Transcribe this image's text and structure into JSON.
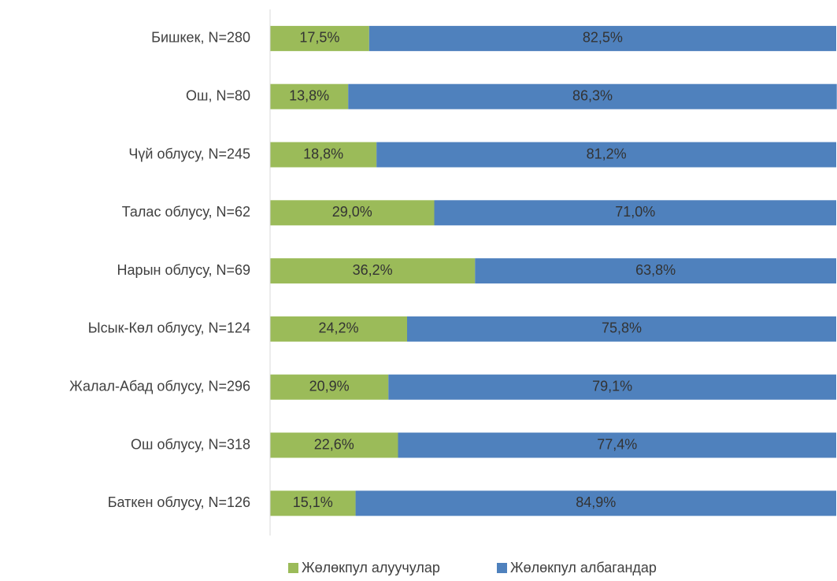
{
  "chart_data": {
    "type": "stacked_bar_horizontal",
    "categories": [
      "Бишкек, N=280",
      "Ош, N=80",
      "Чүй облусу, N=245",
      "Талас облусу, N=62",
      "Нарын облусу, N=69",
      "Ысык-Көл облусу, N=124",
      "Жалал-Абад облусу, N=296",
      "Ош облусу, N=318",
      "Баткен облусу, N=126"
    ],
    "series": [
      {
        "name": "Жөлөкпул алуучулар",
        "color": "#9bbb59",
        "values": [
          17.5,
          13.8,
          18.8,
          29.0,
          36.2,
          24.2,
          20.9,
          22.6,
          15.1
        ],
        "value_labels": [
          "17,5%",
          "13,8%",
          "18,8%",
          "29,0%",
          "36,2%",
          "24,2%",
          "20,9%",
          "22,6%",
          "15,1%"
        ]
      },
      {
        "name": "Жөлөкпул албагандар",
        "color": "#4f81bd",
        "values": [
          82.5,
          86.3,
          81.2,
          71.0,
          63.8,
          75.8,
          79.1,
          77.4,
          84.9
        ],
        "value_labels": [
          "82,5%",
          "86,3%",
          "81,2%",
          "71,0%",
          "63,8%",
          "75,8%",
          "79,1%",
          "77,4%",
          "84,9%"
        ]
      }
    ],
    "xlim": [
      0,
      100
    ],
    "legend": "bottom"
  }
}
